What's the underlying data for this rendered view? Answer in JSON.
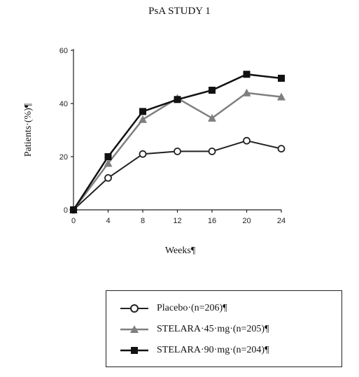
{
  "chart_data": {
    "type": "line",
    "title": "PsA STUDY 1",
    "xlabel": "Weeks¶",
    "ylabel": "Patients·(%)¶",
    "x": [
      0,
      4,
      8,
      12,
      16,
      20,
      24
    ],
    "xlim": [
      0,
      24
    ],
    "ylim": [
      0,
      60
    ],
    "xticks": [
      "0",
      "4",
      "8",
      "12",
      "16",
      "20",
      "24"
    ],
    "yticks": [
      "0",
      "20",
      "40",
      "60"
    ],
    "grid": false,
    "legend_position": "bottom-right",
    "series": [
      {
        "name": "Placebo·(n=206)¶",
        "marker": "circle-open",
        "color": "#222222",
        "values": [
          0,
          12,
          21,
          22,
          22,
          26,
          23
        ]
      },
      {
        "name": "STELARA·45·mg·(n=205)¶",
        "marker": "triangle",
        "color": "#7f7f7f",
        "values": [
          0,
          17.5,
          34,
          42,
          34.5,
          44,
          42.5
        ]
      },
      {
        "name": "STELARA·90·mg·(n=204)¶",
        "marker": "square",
        "color": "#111111",
        "values": [
          0,
          20,
          37,
          41.5,
          45,
          51,
          49.5
        ]
      }
    ]
  }
}
